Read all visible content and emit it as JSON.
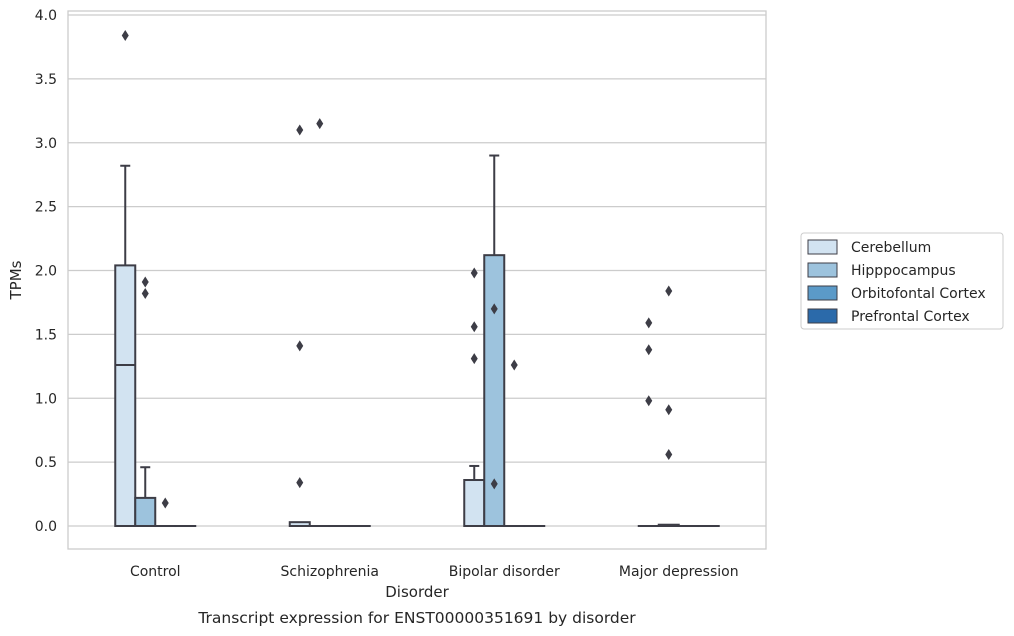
{
  "caption": "Transcript expression for ENST00000351691 by disorder",
  "chart_data": {
    "type": "box",
    "xlabel": "Disorder",
    "ylabel": "TPMs",
    "ylim": [
      -0.18,
      4.05
    ],
    "yticks": [
      "0.0",
      "0.5",
      "1.0",
      "1.5",
      "2.0",
      "2.5",
      "3.0",
      "3.5",
      "4.0"
    ],
    "categories": [
      "Control",
      "Schizophrenia",
      "Bipolar disorder",
      "Major depression"
    ],
    "grid": true,
    "legend_position": "right",
    "series": [
      {
        "name": "Cerebellum",
        "color": "#d2e3f1",
        "boxes": [
          {
            "q1": 0.0,
            "median": 1.26,
            "q3": 2.04,
            "whisker_low": 0.0,
            "whisker_high": 2.82,
            "outliers": [
              3.84
            ]
          },
          {
            "q1": 0.0,
            "median": 0.0,
            "q3": 0.03,
            "whisker_low": 0.0,
            "whisker_high": 0.03,
            "outliers": [
              3.1,
              1.41,
              0.34
            ]
          },
          {
            "q1": 0.0,
            "median": 0.0,
            "q3": 0.36,
            "whisker_low": 0.0,
            "whisker_high": 0.47,
            "outliers": [
              1.98,
              1.56,
              1.31
            ]
          },
          {
            "q1": 0.0,
            "median": 0.0,
            "q3": 0.0,
            "whisker_low": 0.0,
            "whisker_high": 0.0,
            "outliers": [
              1.59,
              1.38,
              0.98
            ]
          }
        ]
      },
      {
        "name": "Hipppocampus",
        "color": "#9dc3dd",
        "boxes": [
          {
            "q1": 0.0,
            "median": 0.0,
            "q3": 0.22,
            "whisker_low": 0.0,
            "whisker_high": 0.46,
            "outliers": [
              1.91,
              1.82
            ]
          },
          {
            "q1": 0.0,
            "median": 0.0,
            "q3": 0.0,
            "whisker_low": 0.0,
            "whisker_high": 0.0,
            "outliers": [
              3.15
            ]
          },
          {
            "q1": 0.0,
            "median": 0.0,
            "q3": 2.12,
            "whisker_low": 0.0,
            "whisker_high": 2.9,
            "outliers": [
              1.7,
              0.33
            ]
          },
          {
            "q1": 0.0,
            "median": 0.0,
            "q3": 0.01,
            "whisker_low": 0.0,
            "whisker_high": 0.01,
            "outliers": [
              1.84,
              0.91,
              0.56
            ]
          }
        ]
      },
      {
        "name": "Orbitofontal Cortex",
        "color": "#5b9ac8",
        "boxes": [
          {
            "q1": 0.0,
            "median": 0.0,
            "q3": 0.0,
            "whisker_low": 0.0,
            "whisker_high": 0.0,
            "outliers": [
              0.18
            ]
          },
          {
            "q1": 0.0,
            "median": 0.0,
            "q3": 0.0,
            "whisker_low": 0.0,
            "whisker_high": 0.0,
            "outliers": []
          },
          {
            "q1": 0.0,
            "median": 0.0,
            "q3": 0.0,
            "whisker_low": 0.0,
            "whisker_high": 0.0,
            "outliers": [
              1.26
            ]
          },
          {
            "q1": 0.0,
            "median": 0.0,
            "q3": 0.0,
            "whisker_low": 0.0,
            "whisker_high": 0.0,
            "outliers": []
          }
        ]
      },
      {
        "name": "Prefrontal Cortex",
        "color": "#2b6aaa",
        "boxes": [
          {
            "q1": 0.0,
            "median": 0.0,
            "q3": 0.0,
            "whisker_low": 0.0,
            "whisker_high": 0.0,
            "outliers": []
          },
          {
            "q1": 0.0,
            "median": 0.0,
            "q3": 0.0,
            "whisker_low": 0.0,
            "whisker_high": 0.0,
            "outliers": []
          },
          {
            "q1": 0.0,
            "median": 0.0,
            "q3": 0.0,
            "whisker_low": 0.0,
            "whisker_high": 0.0,
            "outliers": []
          },
          {
            "q1": 0.0,
            "median": 0.0,
            "q3": 0.0,
            "whisker_low": 0.0,
            "whisker_high": 0.0,
            "outliers": []
          }
        ]
      }
    ]
  }
}
